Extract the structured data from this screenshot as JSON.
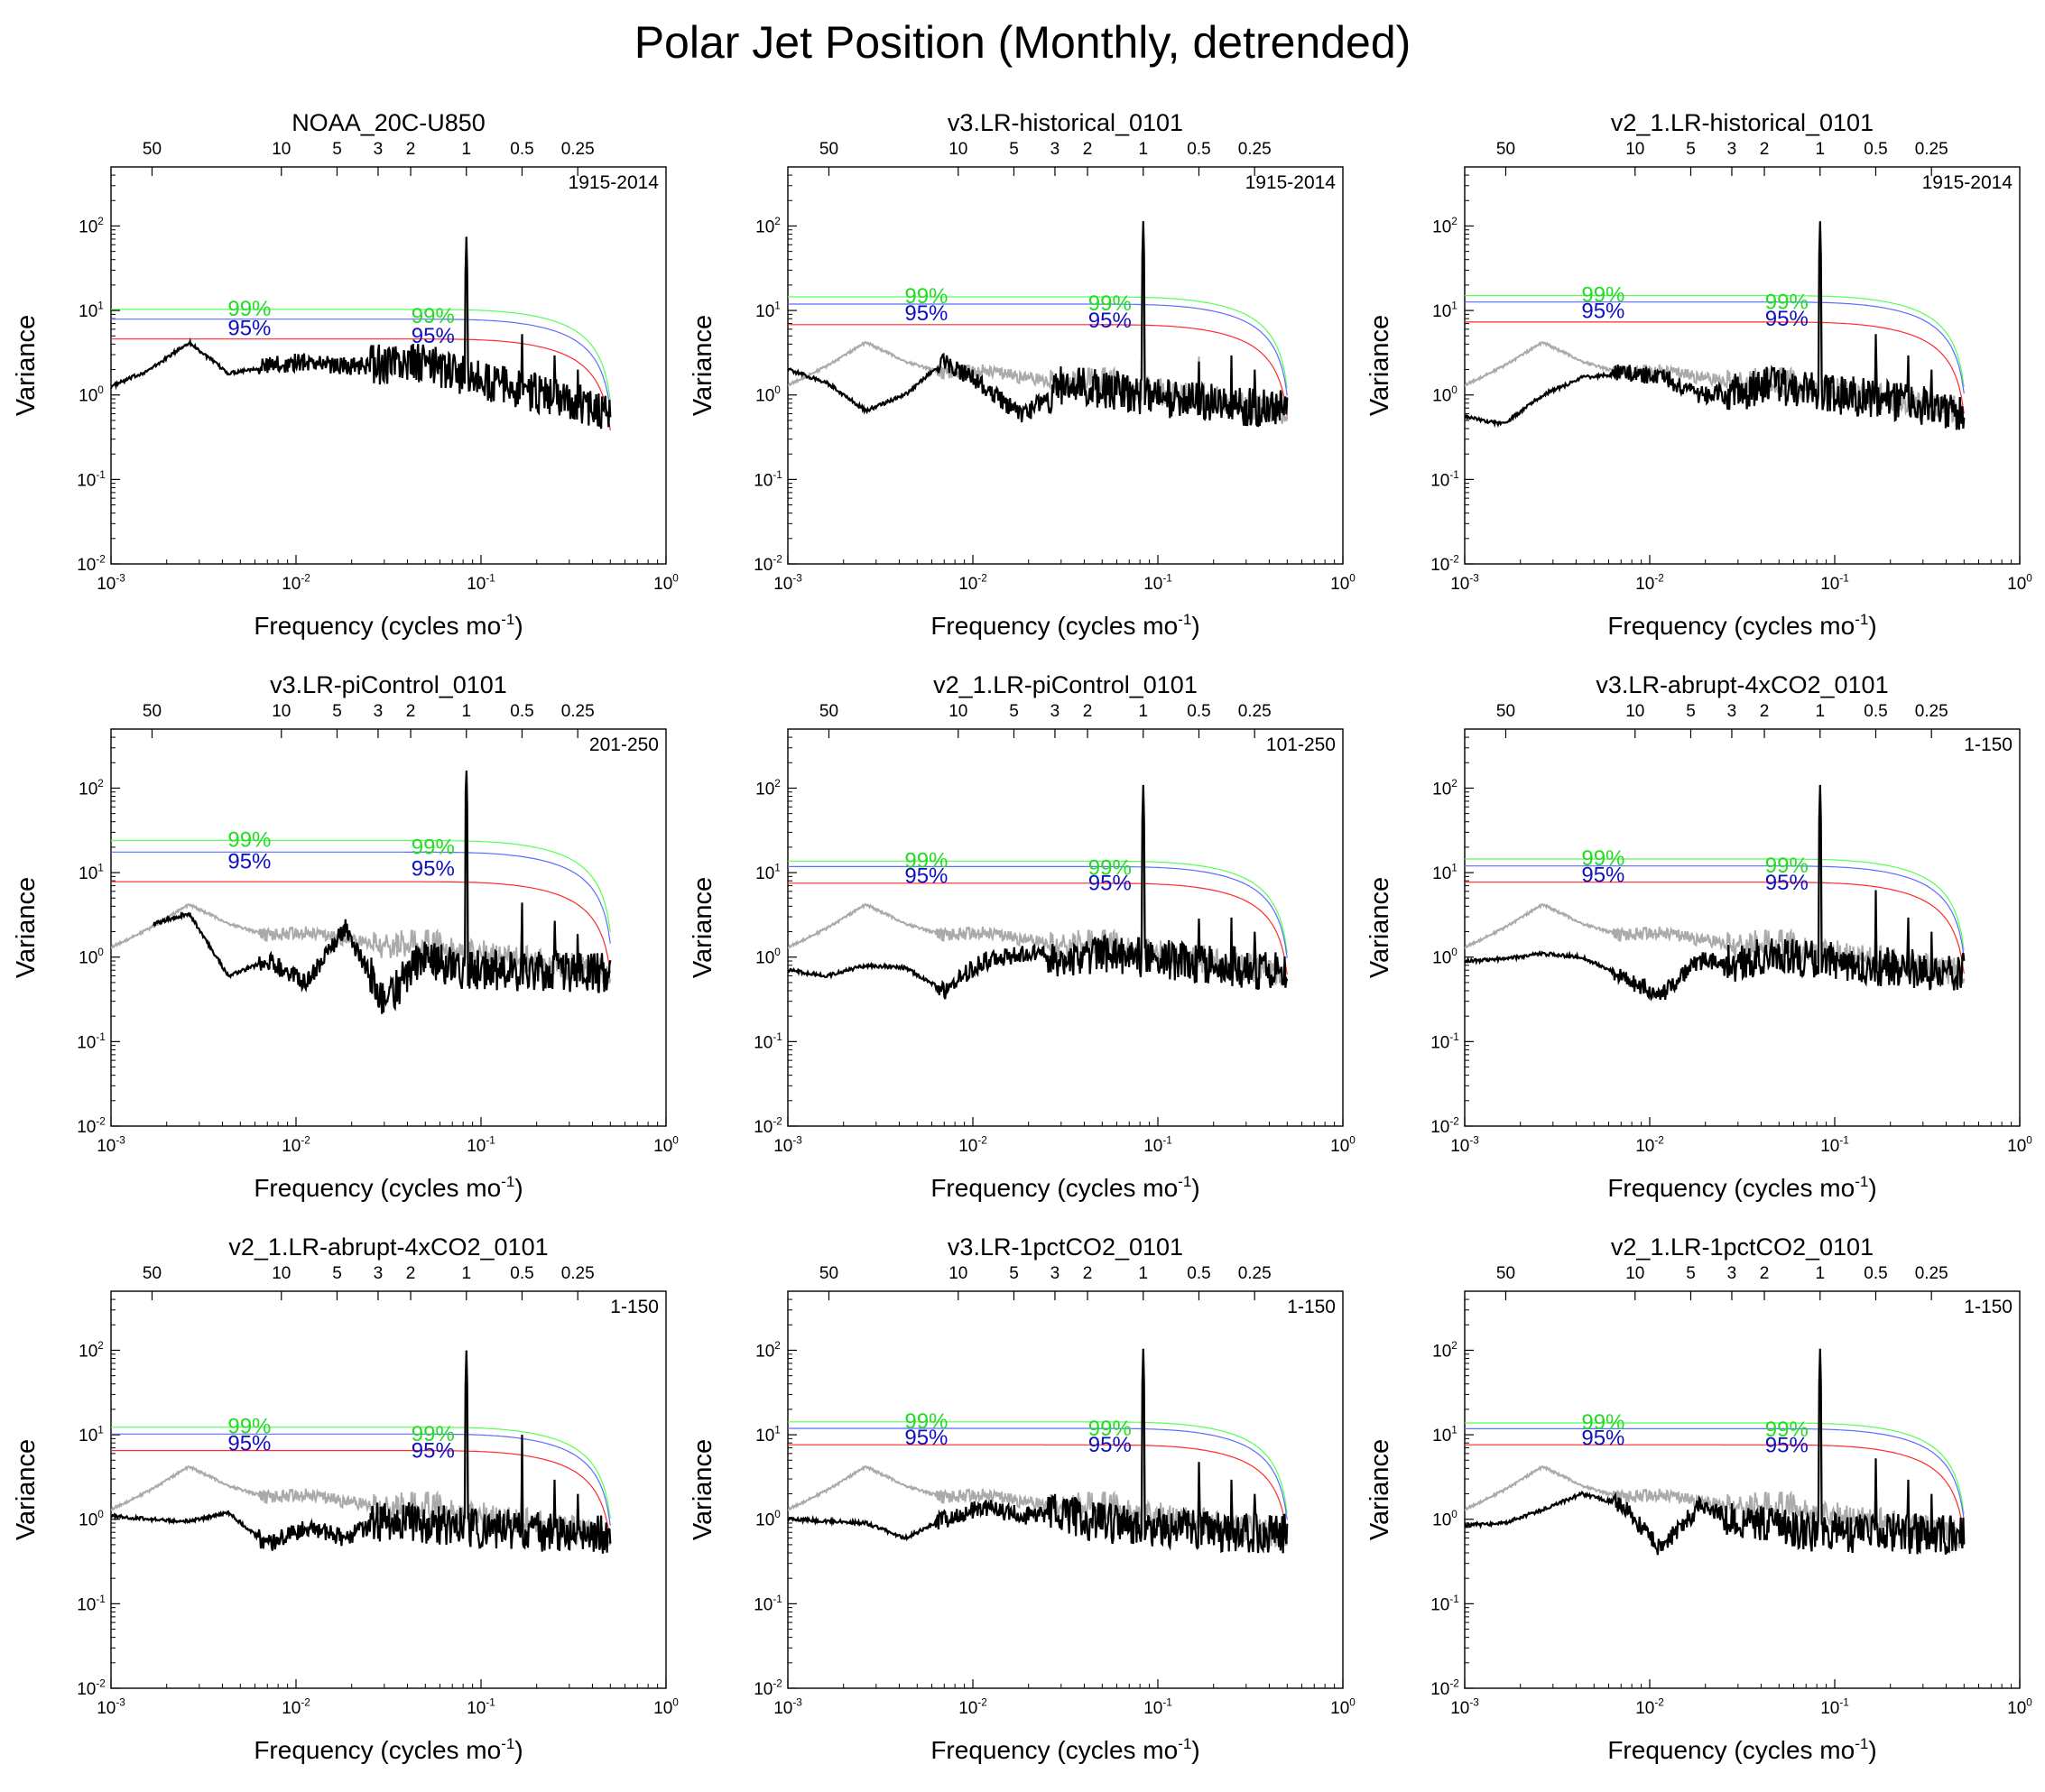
{
  "title": "Polar Jet Position (Monthly, detrended)",
  "axes": {
    "xlabel": "Frequency (cycles mo",
    "xlabel_sup": "-1",
    "xlabel_close": ")",
    "ylabel": "Variance",
    "x_ticks": [
      {
        "base": "10",
        "exp": "-3",
        "value": 0.001
      },
      {
        "base": "10",
        "exp": "-2",
        "value": 0.01
      },
      {
        "base": "10",
        "exp": "-1",
        "value": 0.1
      },
      {
        "base": "10",
        "exp": "0",
        "value": 1
      }
    ],
    "y_ticks": [
      {
        "base": "10",
        "exp": "-2",
        "value": 0.01
      },
      {
        "base": "10",
        "exp": "-1",
        "value": 0.1
      },
      {
        "base": "10",
        "exp": "0",
        "value": 1
      },
      {
        "base": "10",
        "exp": "1",
        "value": 10
      },
      {
        "base": "10",
        "exp": "2",
        "value": 100
      }
    ],
    "period_ticks": [
      {
        "label": "50",
        "period": 50
      },
      {
        "label": "10",
        "period": 10
      },
      {
        "label": "5",
        "period": 5
      },
      {
        "label": "3",
        "period": 3
      },
      {
        "label": "2",
        "period": 2
      },
      {
        "label": "1",
        "period": 1
      },
      {
        "label": "0.5",
        "period": 0.5
      },
      {
        "label": "0.25",
        "period": 0.25
      }
    ],
    "xlim": [
      0.001,
      1
    ],
    "ylim": [
      0.01,
      500
    ]
  },
  "colors": {
    "spectrum": "#000000",
    "reference": "#aaaaaa",
    "red_noise": "#ff2a2a",
    "sig95": "#5b6cff",
    "sig99": "#55ff55",
    "label95": "#1010c0",
    "label99": "#22dd22"
  },
  "chart_data": [
    {
      "type": "line",
      "title": "NOAA_20C-U850",
      "period": "1915-2014",
      "red_noise": 4.6,
      "sig95": 7.9,
      "sig99": 10.3,
      "label95": "95%",
      "label99": "99%",
      "show_reference": false,
      "f_start": 0.001,
      "annual_peak": 75,
      "semiannual_peak": 5.5,
      "low_freq": [
        1.25,
        2.0,
        4.2,
        1.8,
        2.2,
        2.5,
        2.2,
        2.3,
        2.4,
        1.7
      ]
    },
    {
      "type": "line",
      "title": "v3.LR-historical_0101",
      "period": "1915-2014",
      "red_noise": 6.8,
      "sig95": 11.9,
      "sig99": 14.5,
      "label95": "95%",
      "label99": "99%",
      "show_reference": true,
      "f_start": 0.001,
      "annual_peak": 115,
      "semiannual_peak": 2.6,
      "low_freq": [
        2.0,
        1.4,
        0.65,
        1.0,
        2.5,
        1.3,
        0.55,
        1.3,
        1.2,
        1.0
      ]
    },
    {
      "type": "line",
      "title": "v2_1.LR-historical_0101",
      "period": "1915-2014",
      "red_noise": 7.3,
      "sig95": 12.6,
      "sig99": 15.0,
      "label95": "95%",
      "label99": "99%",
      "show_reference": true,
      "f_start": 0.001,
      "annual_peak": 115,
      "semiannual_peak": 5.5,
      "low_freq": [
        0.55,
        0.45,
        1.0,
        1.6,
        1.8,
        1.7,
        1.0,
        1.1,
        1.3,
        1.1
      ]
    },
    {
      "type": "line",
      "title": "v3.LR-piControl_0101",
      "period": "201-250",
      "red_noise": 7.8,
      "sig95": 17.5,
      "sig99": 24.0,
      "label95": "95%",
      "label99": "99%",
      "show_reference": true,
      "f_start": 0.0017,
      "annual_peak": 175,
      "semiannual_peak": 4.5,
      "low_freq": [
        1.45,
        2.4,
        3.3,
        0.6,
        0.9,
        0.5,
        2.2,
        0.3,
        1.0,
        0.7
      ]
    },
    {
      "type": "line",
      "title": "v2_1.LR-piControl_0101",
      "period": "101-250",
      "red_noise": 7.5,
      "sig95": 11.8,
      "sig99": 13.7,
      "label95": "95%",
      "label99": "99%",
      "show_reference": true,
      "f_start": 0.001,
      "annual_peak": 110,
      "semiannual_peak": 3.0,
      "low_freq": [
        0.7,
        0.6,
        0.8,
        0.75,
        0.4,
        0.9,
        1.1,
        1.0,
        1.1,
        1.0
      ]
    },
    {
      "type": "line",
      "title": "v3.LR-abrupt-4xCO2_0101",
      "period": "1-150",
      "red_noise": 7.7,
      "sig95": 12.0,
      "sig99": 14.5,
      "label95": "95%",
      "label99": "99%",
      "show_reference": true,
      "f_start": 0.001,
      "annual_peak": 110,
      "semiannual_peak": 6.5,
      "low_freq": [
        0.9,
        0.95,
        1.1,
        1.0,
        0.6,
        0.35,
        0.9,
        0.85,
        1.1,
        0.9
      ]
    },
    {
      "type": "line",
      "title": "v2_1.LR-abrupt-4xCO2_0101",
      "period": "1-150",
      "red_noise": 6.5,
      "sig95": 10.2,
      "sig99": 12.3,
      "label95": "95%",
      "label99": "99%",
      "show_reference": true,
      "f_start": 0.001,
      "annual_peak": 100,
      "semiannual_peak": 10.5,
      "low_freq": [
        1.1,
        1.0,
        0.95,
        1.2,
        0.5,
        0.8,
        0.6,
        1.0,
        0.9,
        0.8
      ]
    },
    {
      "type": "line",
      "title": "v3.LR-1pctCO2_0101",
      "period": "1-150",
      "red_noise": 7.6,
      "sig95": 11.9,
      "sig99": 14.2,
      "label95": "95%",
      "label99": "99%",
      "show_reference": true,
      "f_start": 0.001,
      "annual_peak": 105,
      "semiannual_peak": 5.0,
      "low_freq": [
        1.0,
        0.95,
        0.9,
        0.6,
        1.0,
        1.4,
        1.1,
        1.2,
        0.9,
        0.8
      ]
    },
    {
      "type": "line",
      "title": "v2_1.LR-1pctCO2_0101",
      "period": "1-150",
      "red_noise": 7.6,
      "sig95": 11.8,
      "sig99": 13.8,
      "label95": "95%",
      "label99": "99%",
      "show_reference": true,
      "f_start": 0.001,
      "annual_peak": 105,
      "semiannual_peak": 5.5,
      "low_freq": [
        0.85,
        0.9,
        1.3,
        2.0,
        1.5,
        0.45,
        1.4,
        1.0,
        0.9,
        0.7
      ]
    }
  ],
  "reference_spectrum": [
    1.3,
    2.2,
    4.2,
    2.5,
    1.8,
    2.0,
    1.6,
    1.4,
    1.5,
    1.2
  ]
}
